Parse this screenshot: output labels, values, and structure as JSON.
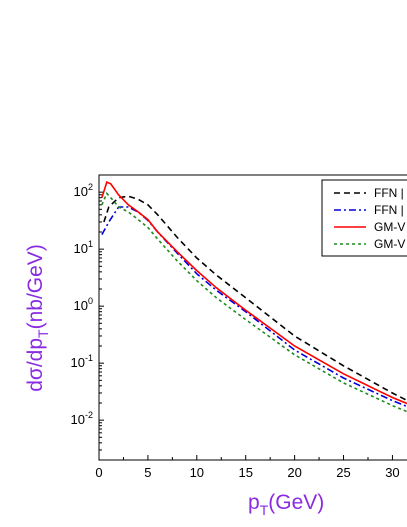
{
  "chart_data": {
    "type": "line",
    "xlabel": "p",
    "xlabel_sub": "T",
    "xlabel_unit": "(GeV)",
    "ylabel_pre": "dσ/dp",
    "ylabel_sub": "T",
    "ylabel_unit": "(nb/GeV)",
    "axis_title_color": "#8a2be2",
    "yscale": "log",
    "xlim": [
      0,
      32
    ],
    "ylim": [
      0.002,
      200
    ],
    "x_ticks": [
      {
        "value": 0,
        "label": "0"
      },
      {
        "value": 5,
        "label": "5"
      },
      {
        "value": 10,
        "label": "10"
      },
      {
        "value": 15,
        "label": "15"
      },
      {
        "value": 20,
        "label": "20"
      },
      {
        "value": 25,
        "label": "25"
      },
      {
        "value": 30,
        "label": "30"
      }
    ],
    "y_ticks": [
      {
        "value": 100,
        "base": "10",
        "exp": "2"
      },
      {
        "value": 10,
        "base": "10",
        "exp": "1"
      },
      {
        "value": 1,
        "base": "10",
        "exp": "0"
      },
      {
        "value": 0.1,
        "base": "10",
        "exp": "-1"
      },
      {
        "value": 0.01,
        "base": "10",
        "exp": "-2"
      }
    ],
    "grid": false,
    "legend_position": "top-right",
    "series": [
      {
        "name": "FFN |",
        "color": "#000000",
        "dash": "6,4",
        "x": [
          0.5,
          1,
          2,
          3,
          4,
          5,
          6,
          8,
          10,
          12,
          15,
          20,
          25,
          30,
          32
        ],
        "y": [
          30,
          55,
          80,
          85,
          75,
          60,
          40,
          16,
          7,
          3.5,
          1.4,
          0.3,
          0.09,
          0.03,
          0.02
        ]
      },
      {
        "name": "FFN |",
        "color": "#0000dd",
        "dash": "7,3,2,3",
        "x": [
          0.3,
          1,
          2,
          3,
          4,
          5,
          6,
          8,
          10,
          12,
          15,
          20,
          25,
          30,
          32
        ],
        "y": [
          18,
          30,
          55,
          55,
          45,
          32,
          20,
          8.5,
          3.7,
          1.9,
          0.8,
          0.17,
          0.055,
          0.022,
          0.016
        ]
      },
      {
        "name": "GM-V",
        "color": "#ff0000",
        "dash": "",
        "x": [
          0.3,
          0.8,
          1.2,
          2,
          3,
          4,
          5,
          6,
          8,
          10,
          12,
          15,
          20,
          25,
          30,
          32
        ],
        "y": [
          80,
          150,
          140,
          90,
          60,
          45,
          33,
          20,
          9,
          4.2,
          2.1,
          0.85,
          0.2,
          0.065,
          0.025,
          0.018
        ]
      },
      {
        "name": "GM-V",
        "color": "#1e8c1e",
        "dash": "3,3",
        "x": [
          0.3,
          0.8,
          1.5,
          2,
          3,
          4,
          5,
          6,
          8,
          10,
          12,
          15,
          20,
          25,
          30,
          32
        ],
        "y": [
          60,
          95,
          70,
          55,
          45,
          33,
          24,
          15,
          6.2,
          2.8,
          1.4,
          0.58,
          0.14,
          0.045,
          0.018,
          0.013
        ]
      }
    ]
  }
}
